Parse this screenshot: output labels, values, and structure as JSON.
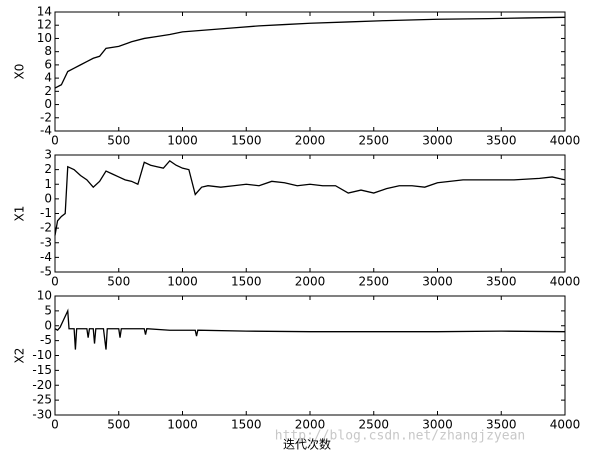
{
  "chart_data": [
    {
      "type": "line",
      "ylabel": "X0",
      "color": "#000000",
      "x": [
        0,
        50,
        100,
        150,
        200,
        250,
        300,
        350,
        400,
        500,
        600,
        700,
        800,
        900,
        1000,
        1200,
        1400,
        1600,
        1800,
        2000,
        2300,
        2600,
        3000,
        3400,
        3700,
        4000
      ],
      "values": [
        2.5,
        3,
        5,
        5.5,
        6,
        6.5,
        7,
        7.3,
        8.5,
        8.8,
        9.5,
        10,
        10.3,
        10.6,
        11,
        11.3,
        11.6,
        11.9,
        12.1,
        12.3,
        12.5,
        12.7,
        12.9,
        13,
        13.1,
        13.2
      ],
      "xlim": [
        0,
        4000
      ],
      "xticks": [
        0,
        500,
        1000,
        1500,
        2000,
        2500,
        3000,
        3500,
        4000
      ],
      "ylim": [
        -4,
        14
      ],
      "yticks": [
        -4,
        -2,
        0,
        2,
        4,
        6,
        8,
        10,
        12,
        14
      ]
    },
    {
      "type": "line",
      "ylabel": "X1",
      "color": "#000000",
      "x": [
        0,
        20,
        50,
        80,
        100,
        150,
        200,
        250,
        300,
        350,
        400,
        450,
        500,
        550,
        600,
        650,
        700,
        750,
        800,
        850,
        900,
        950,
        1000,
        1050,
        1100,
        1150,
        1200,
        1300,
        1400,
        1500,
        1600,
        1700,
        1800,
        1900,
        2000,
        2100,
        2200,
        2300,
        2400,
        2500,
        2600,
        2700,
        2800,
        2900,
        3000,
        3200,
        3400,
        3600,
        3800,
        3900,
        4000
      ],
      "values": [
        -2.5,
        -1.5,
        -1.2,
        -1,
        2.2,
        2,
        1.6,
        1.3,
        0.8,
        1.2,
        1.9,
        1.7,
        1.5,
        1.3,
        1.2,
        1,
        2.5,
        2.3,
        2.2,
        2.1,
        2.6,
        2.3,
        2.1,
        2,
        0.3,
        0.8,
        0.9,
        0.8,
        0.9,
        1,
        0.9,
        1.2,
        1.1,
        0.9,
        1,
        0.9,
        0.9,
        0.4,
        0.6,
        0.4,
        0.7,
        0.9,
        0.9,
        0.8,
        1.1,
        1.3,
        1.3,
        1.3,
        1.4,
        1.5,
        1.3
      ],
      "xlim": [
        0,
        4000
      ],
      "xticks": [
        0,
        500,
        1000,
        1500,
        2000,
        2500,
        3000,
        3500,
        4000
      ],
      "ylim": [
        -5,
        3
      ],
      "yticks": [
        -5,
        -4,
        -3,
        -2,
        -1,
        0,
        1,
        2,
        3
      ]
    },
    {
      "type": "line",
      "ylabel": "X2",
      "xlabel": "迭代次数",
      "color": "#000000",
      "x": [
        0,
        20,
        40,
        100,
        110,
        150,
        160,
        170,
        250,
        260,
        270,
        300,
        310,
        320,
        380,
        400,
        410,
        420,
        500,
        510,
        520,
        700,
        710,
        720,
        900,
        1100,
        1110,
        1120,
        1500,
        2000,
        2500,
        3000,
        3500,
        4000
      ],
      "values": [
        -1,
        -1.5,
        -0.5,
        5,
        -1,
        -1,
        -8,
        -1,
        -1,
        -4,
        -1,
        -1,
        -6,
        -1,
        -1,
        -8,
        -1,
        -1,
        -1,
        -4,
        -1,
        -1,
        -3,
        -1,
        -1.5,
        -1.5,
        -3.5,
        -1.5,
        -1.8,
        -2,
        -2,
        -2,
        -1.8,
        -2
      ],
      "xlim": [
        0,
        4000
      ],
      "xticks": [
        0,
        500,
        1000,
        1500,
        2000,
        2500,
        3000,
        3500,
        4000
      ],
      "ylim": [
        -30,
        10
      ],
      "yticks": [
        -30,
        -25,
        -20,
        -15,
        -10,
        -5,
        0,
        5,
        10
      ]
    }
  ],
  "watermark": "http://blog.csdn.net/zhangjzyean"
}
